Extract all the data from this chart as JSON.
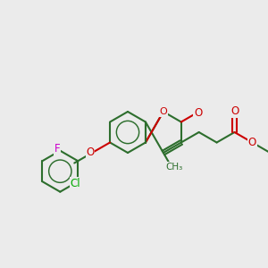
{
  "bg_color": "#ebebeb",
  "bond_color": "#2d6e2d",
  "o_color": "#cc0000",
  "f_color": "#cc00cc",
  "cl_color": "#00aa00",
  "lw": 1.5,
  "atoms": {
    "F": {
      "color": "#cc00cc"
    },
    "Cl": {
      "color": "#00aa00"
    },
    "O": {
      "color": "#cc0000"
    },
    "C": {
      "color": "#2d6e2d"
    }
  }
}
